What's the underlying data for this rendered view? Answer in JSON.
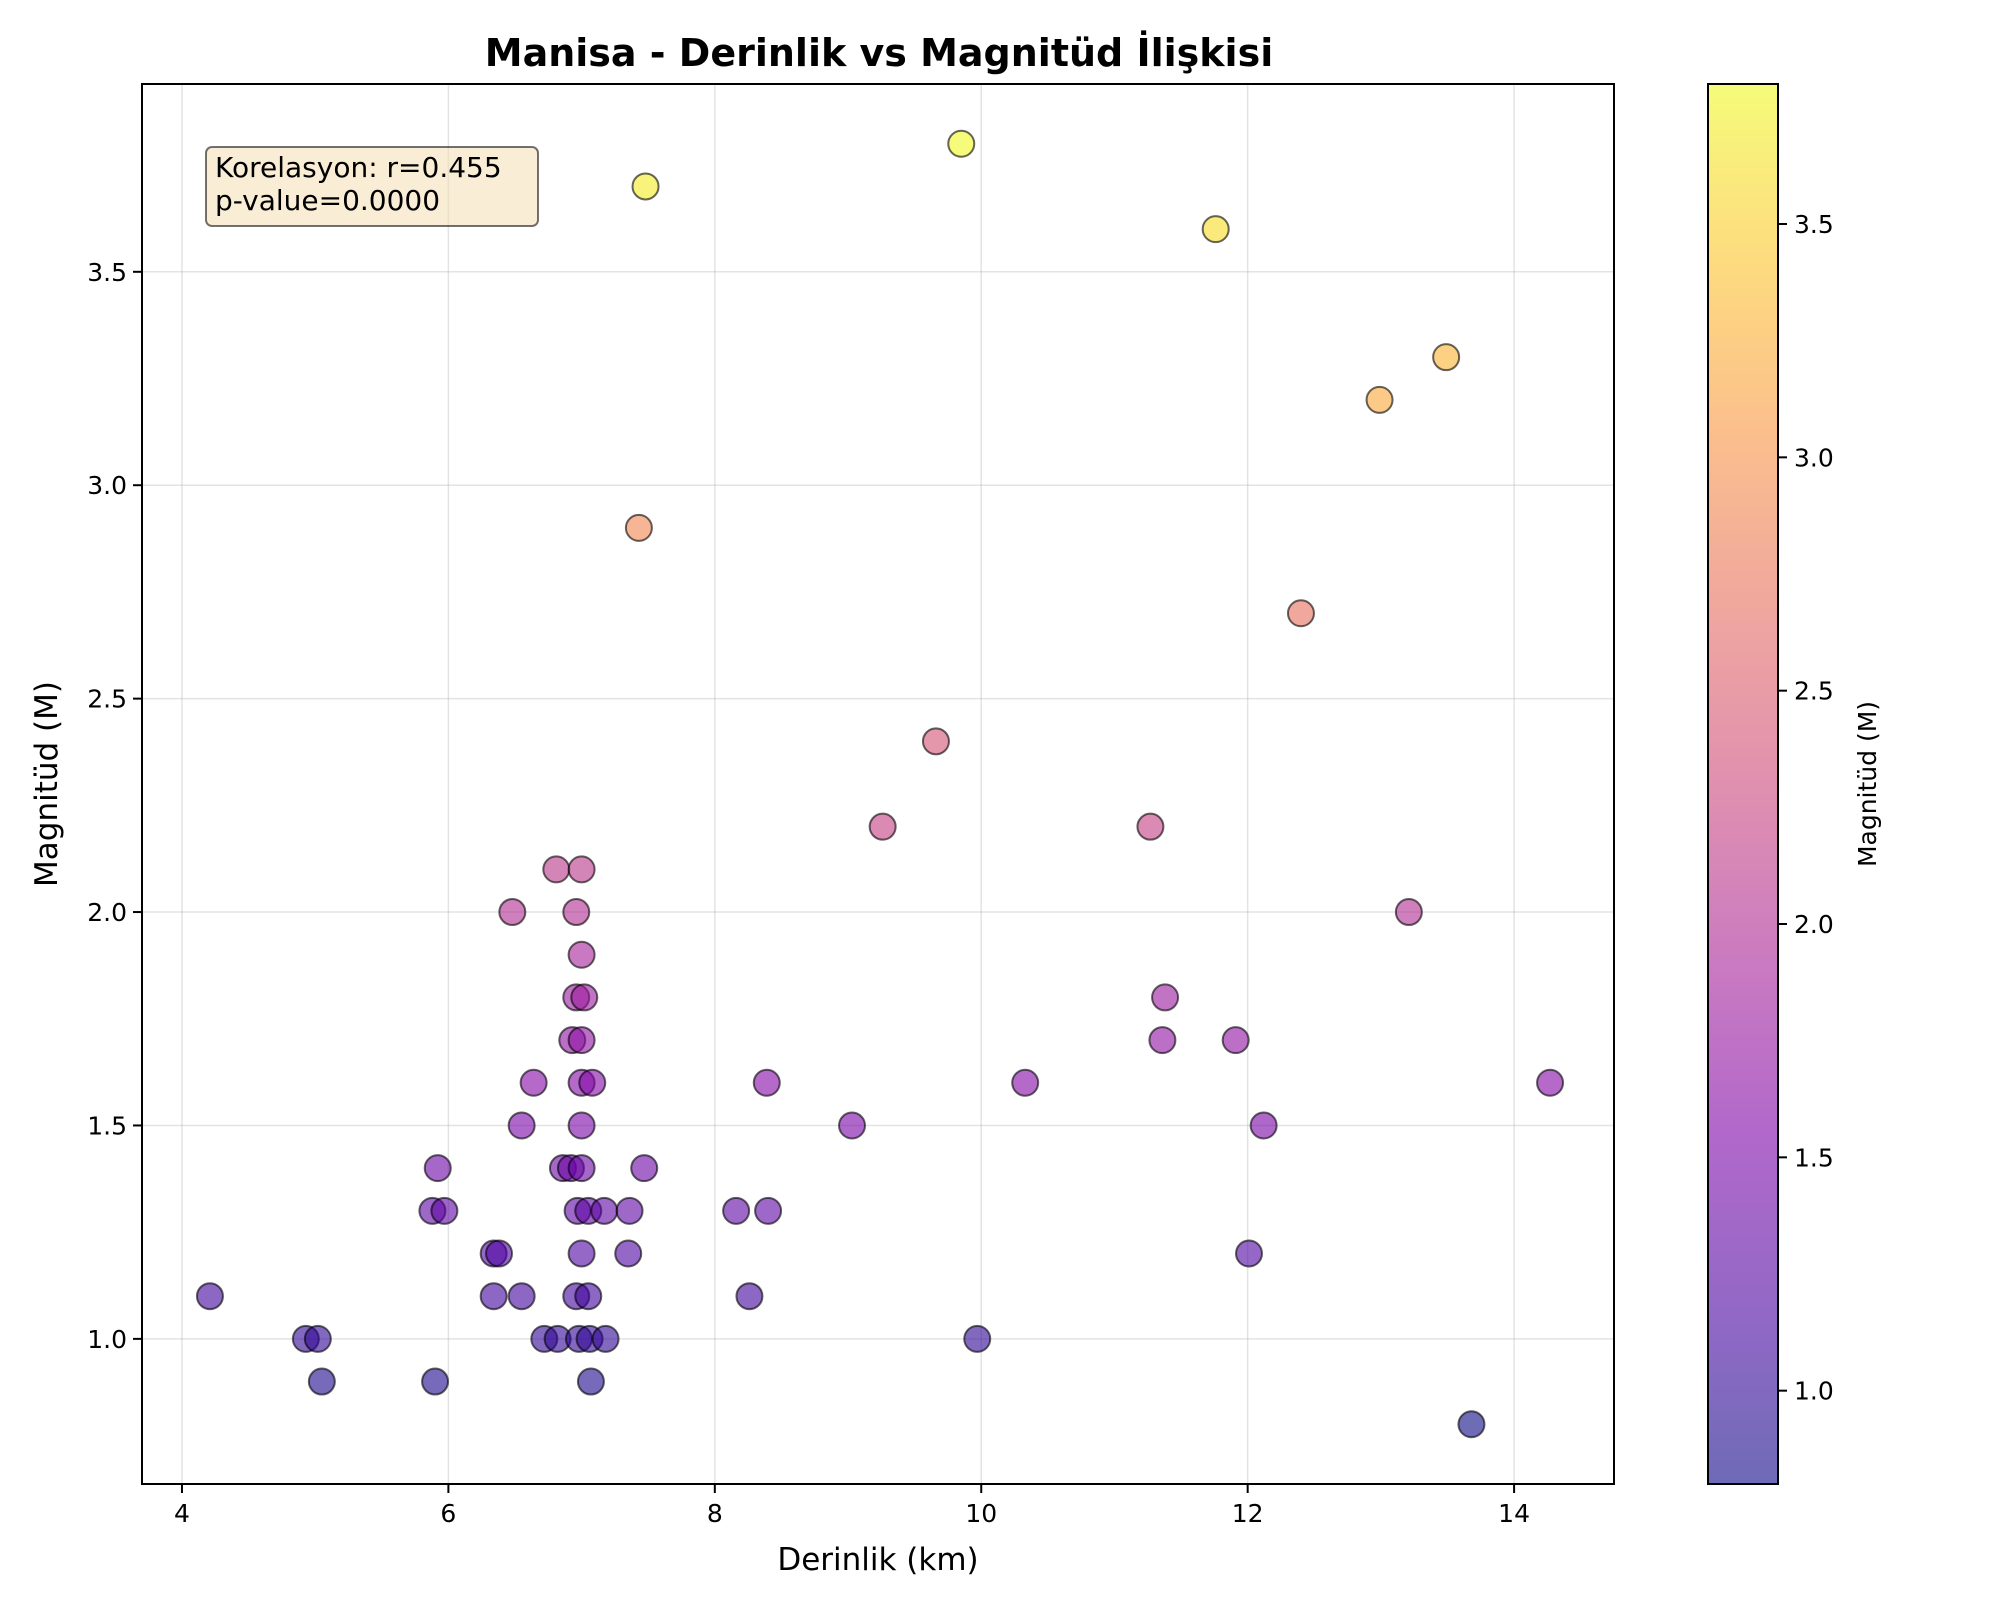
{
  "chart_data": {
    "type": "scatter",
    "title": "Manisa - Derinlik vs Magnitüd İlişkisi",
    "xlabel": "Derinlik (km)",
    "ylabel": "Magnitüd (M)",
    "xlim": [
      3.7,
      14.75
    ],
    "ylim": [
      0.66,
      3.94
    ],
    "xticks": [
      4,
      6,
      8,
      10,
      12,
      14
    ],
    "yticks": [
      1.0,
      1.5,
      2.0,
      2.5,
      3.0,
      3.5
    ],
    "xtick_labels": [
      "4",
      "6",
      "8",
      "10",
      "12",
      "14"
    ],
    "ytick_labels": [
      "1.0",
      "1.5",
      "2.0",
      "2.5",
      "3.0",
      "3.5"
    ],
    "grid": true,
    "colormap": "plasma",
    "color_range": [
      0.8,
      3.8
    ],
    "colorbar": {
      "label": "Magnitüd (M)",
      "ticks": [
        1.0,
        1.5,
        2.0,
        2.5,
        3.0,
        3.5
      ],
      "tick_labels": [
        "1.0",
        "1.5",
        "2.0",
        "2.5",
        "3.0",
        "3.5"
      ]
    },
    "annotation": {
      "line1": "Korelasyon: r=0.455",
      "line2": "p-value=0.0000",
      "background": "#f5deb3"
    },
    "points": [
      {
        "x": 4.21,
        "y": 1.1
      },
      {
        "x": 4.93,
        "y": 1.0
      },
      {
        "x": 5.02,
        "y": 1.0
      },
      {
        "x": 5.05,
        "y": 0.9
      },
      {
        "x": 5.9,
        "y": 0.9
      },
      {
        "x": 5.88,
        "y": 1.3
      },
      {
        "x": 5.97,
        "y": 1.3
      },
      {
        "x": 5.92,
        "y": 1.4
      },
      {
        "x": 6.34,
        "y": 1.2
      },
      {
        "x": 6.38,
        "y": 1.2
      },
      {
        "x": 6.34,
        "y": 1.1
      },
      {
        "x": 6.55,
        "y": 1.1
      },
      {
        "x": 6.72,
        "y": 1.0
      },
      {
        "x": 6.82,
        "y": 1.0
      },
      {
        "x": 6.48,
        "y": 2.0
      },
      {
        "x": 6.55,
        "y": 1.5
      },
      {
        "x": 6.64,
        "y": 1.6
      },
      {
        "x": 6.81,
        "y": 2.1
      },
      {
        "x": 6.86,
        "y": 1.4
      },
      {
        "x": 6.92,
        "y": 1.4
      },
      {
        "x": 6.93,
        "y": 1.7
      },
      {
        "x": 6.96,
        "y": 1.8
      },
      {
        "x": 6.96,
        "y": 2.0
      },
      {
        "x": 7.0,
        "y": 2.1
      },
      {
        "x": 7.0,
        "y": 1.9
      },
      {
        "x": 7.02,
        "y": 1.8
      },
      {
        "x": 7.0,
        "y": 1.7
      },
      {
        "x": 7.0,
        "y": 1.6
      },
      {
        "x": 7.08,
        "y": 1.6
      },
      {
        "x": 7.0,
        "y": 1.5
      },
      {
        "x": 7.0,
        "y": 1.4
      },
      {
        "x": 6.97,
        "y": 1.3
      },
      {
        "x": 7.05,
        "y": 1.3
      },
      {
        "x": 7.17,
        "y": 1.3
      },
      {
        "x": 7.0,
        "y": 1.2
      },
      {
        "x": 6.96,
        "y": 1.1
      },
      {
        "x": 7.05,
        "y": 1.1
      },
      {
        "x": 6.98,
        "y": 1.0
      },
      {
        "x": 7.06,
        "y": 1.0
      },
      {
        "x": 7.18,
        "y": 1.0
      },
      {
        "x": 7.07,
        "y": 0.9
      },
      {
        "x": 7.36,
        "y": 1.3
      },
      {
        "x": 7.35,
        "y": 1.2
      },
      {
        "x": 7.47,
        "y": 1.4
      },
      {
        "x": 7.43,
        "y": 2.9
      },
      {
        "x": 7.48,
        "y": 3.7
      },
      {
        "x": 8.16,
        "y": 1.3
      },
      {
        "x": 8.4,
        "y": 1.3
      },
      {
        "x": 8.26,
        "y": 1.1
      },
      {
        "x": 8.39,
        "y": 1.6
      },
      {
        "x": 9.03,
        "y": 1.5
      },
      {
        "x": 9.26,
        "y": 2.2
      },
      {
        "x": 9.66,
        "y": 2.4
      },
      {
        "x": 9.85,
        "y": 3.8
      },
      {
        "x": 9.97,
        "y": 1.0
      },
      {
        "x": 10.33,
        "y": 1.6
      },
      {
        "x": 11.27,
        "y": 2.2
      },
      {
        "x": 11.36,
        "y": 1.7
      },
      {
        "x": 11.38,
        "y": 1.8
      },
      {
        "x": 11.76,
        "y": 3.6
      },
      {
        "x": 11.91,
        "y": 1.7
      },
      {
        "x": 12.01,
        "y": 1.2
      },
      {
        "x": 12.12,
        "y": 1.5
      },
      {
        "x": 12.4,
        "y": 2.7
      },
      {
        "x": 12.99,
        "y": 3.2
      },
      {
        "x": 13.21,
        "y": 2.0
      },
      {
        "x": 13.49,
        "y": 3.3
      },
      {
        "x": 13.68,
        "y": 0.8
      },
      {
        "x": 14.27,
        "y": 1.6
      }
    ]
  }
}
